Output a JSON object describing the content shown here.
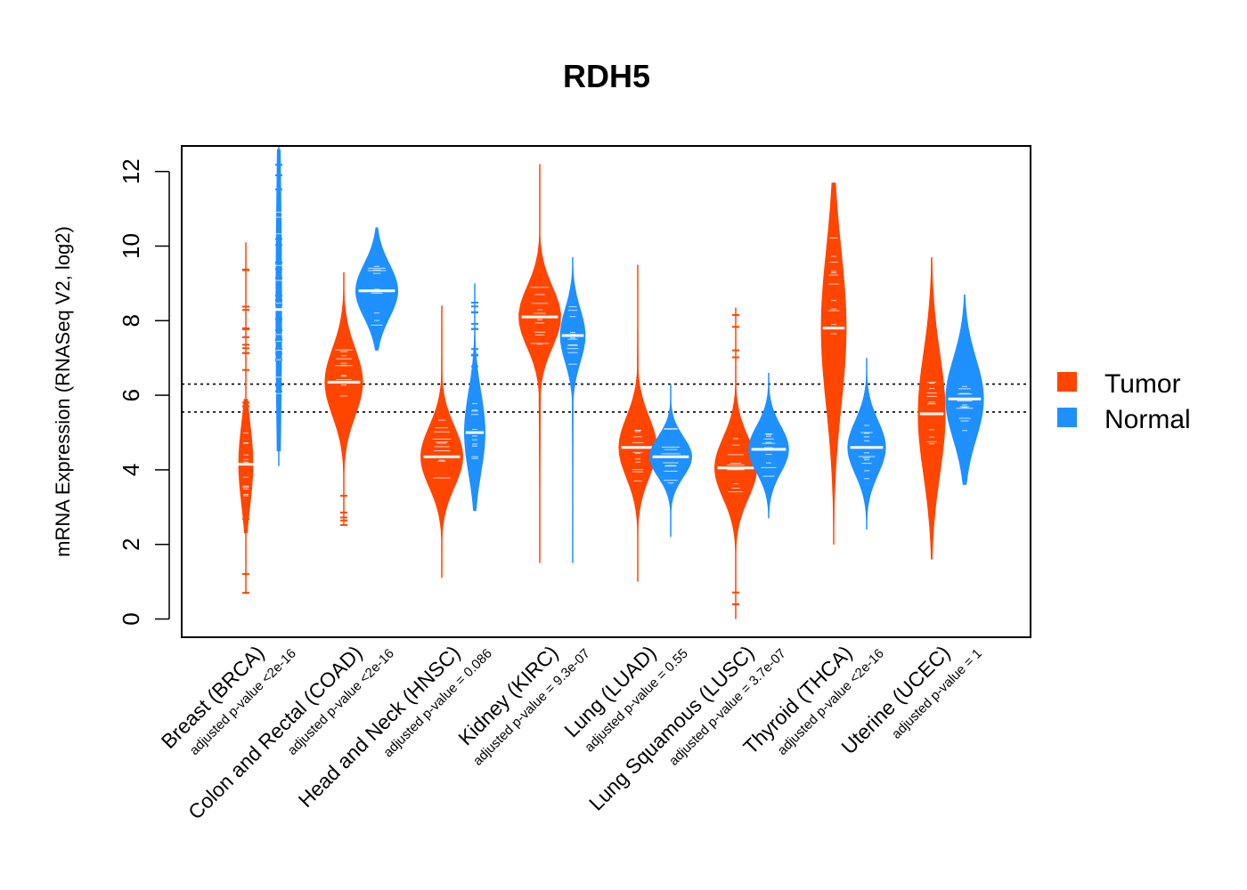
{
  "chart_data": {
    "type": "violin",
    "title": "RDH5",
    "ylabel": "mRNA Expression (RNASeq V2, log2)",
    "xlabel": "",
    "ylim": [
      -0.5,
      12.7
    ],
    "yticks": [
      0,
      2,
      4,
      6,
      8,
      10,
      12
    ],
    "reference_lines": [
      6.3,
      5.55
    ],
    "series_names": [
      "Tumor",
      "Normal"
    ],
    "series_colors": {
      "Tumor": "#ff4500",
      "Normal": "#1e90ff"
    },
    "groups": [
      {
        "category": "Breast (BRCA)",
        "pvalue": "adjusted p-value <2e-16",
        "tumor": {
          "min": 0.7,
          "max": 10.1,
          "median": 4.15,
          "q1": 3.4,
          "q3": 4.6,
          "core_low": 2.3,
          "core_high": 5.9,
          "width": 0.35
        },
        "normal": {
          "min": 4.1,
          "max": 12.7,
          "median": 8.3,
          "q1": 6.3,
          "q3": 10.8,
          "core_low": 4.5,
          "core_high": 12.6,
          "width": 0.15
        }
      },
      {
        "category": "Colon and Rectal (COAD)",
        "pvalue": "adjusted p-value <2e-16",
        "tumor": {
          "min": 2.5,
          "max": 9.3,
          "median": 6.35,
          "q1": 5.9,
          "q3": 6.9,
          "core_low": 3.5,
          "core_high": 9.2,
          "width": 0.9
        },
        "normal": {
          "min": 7.2,
          "max": 10.5,
          "median": 8.8,
          "q1": 8.4,
          "q3": 9.2,
          "core_low": 7.2,
          "core_high": 10.5,
          "width": 1.0
        }
      },
      {
        "category": "Head and Neck (HNSC)",
        "pvalue": "adjusted p-value = 0.086",
        "tumor": {
          "min": 1.1,
          "max": 8.4,
          "median": 4.35,
          "q1": 3.9,
          "q3": 4.8,
          "core_low": 1.1,
          "core_high": 8.4,
          "width": 1.0
        },
        "normal": {
          "min": 2.9,
          "max": 9.0,
          "median": 5.0,
          "q1": 4.4,
          "q3": 5.6,
          "core_low": 2.9,
          "core_high": 9.0,
          "width": 0.5
        }
      },
      {
        "category": "Kidney (KIRC)",
        "pvalue": "adjusted p-value = 9.3e-07",
        "tumor": {
          "min": 1.5,
          "max": 12.2,
          "median": 8.1,
          "q1": 7.7,
          "q3": 8.6,
          "core_low": 1.5,
          "core_high": 12.2,
          "width": 1.0
        },
        "normal": {
          "min": 1.5,
          "max": 9.7,
          "median": 7.6,
          "q1": 7.2,
          "q3": 8.0,
          "core_low": 1.5,
          "core_high": 9.7,
          "width": 0.6
        }
      },
      {
        "category": "Lung (LUAD)",
        "pvalue": "adjusted p-value = 0.55",
        "tumor": {
          "min": 1.0,
          "max": 9.5,
          "median": 4.6,
          "q1": 4.1,
          "q3": 5.0,
          "core_low": 1.0,
          "core_high": 9.5,
          "width": 0.9
        },
        "normal": {
          "min": 2.2,
          "max": 6.3,
          "median": 4.35,
          "q1": 4.1,
          "q3": 4.7,
          "core_low": 2.2,
          "core_high": 6.3,
          "width": 1.0
        }
      },
      {
        "category": "Lung Squamous (LUSC)",
        "pvalue": "adjusted p-value = 3.7e-07",
        "tumor": {
          "min": 0.0,
          "max": 8.35,
          "median": 4.05,
          "q1": 3.6,
          "q3": 4.5,
          "core_low": 1.2,
          "core_high": 7.0,
          "width": 1.0
        },
        "normal": {
          "min": 2.7,
          "max": 6.6,
          "median": 4.55,
          "q1": 4.2,
          "q3": 4.9,
          "core_low": 2.7,
          "core_high": 6.6,
          "width": 0.95
        }
      },
      {
        "category": "Thyroid (THCA)",
        "pvalue": "adjusted p-value <2e-16",
        "tumor": {
          "min": 2.0,
          "max": 11.7,
          "median": 7.8,
          "q1": 7.5,
          "q3": 9.8,
          "core_low": 2.0,
          "core_high": 11.7,
          "width": 0.6
        },
        "normal": {
          "min": 2.4,
          "max": 7.0,
          "median": 4.6,
          "q1": 4.2,
          "q3": 5.0,
          "core_low": 2.4,
          "core_high": 7.0,
          "width": 0.9
        }
      },
      {
        "category": "Uterine (UCEC)",
        "pvalue": "adjusted p-value = 1",
        "tumor": {
          "min": 1.6,
          "max": 9.7,
          "median": 5.5,
          "q1": 4.6,
          "q3": 6.4,
          "core_low": 1.6,
          "core_high": 9.7,
          "width": 0.65
        },
        "normal": {
          "min": 3.6,
          "max": 8.7,
          "median": 5.9,
          "q1": 5.4,
          "q3": 6.6,
          "core_low": 3.6,
          "core_high": 8.7,
          "width": 0.9
        }
      }
    ]
  },
  "legend": {
    "tumor_label": "Tumor",
    "normal_label": "Normal"
  }
}
